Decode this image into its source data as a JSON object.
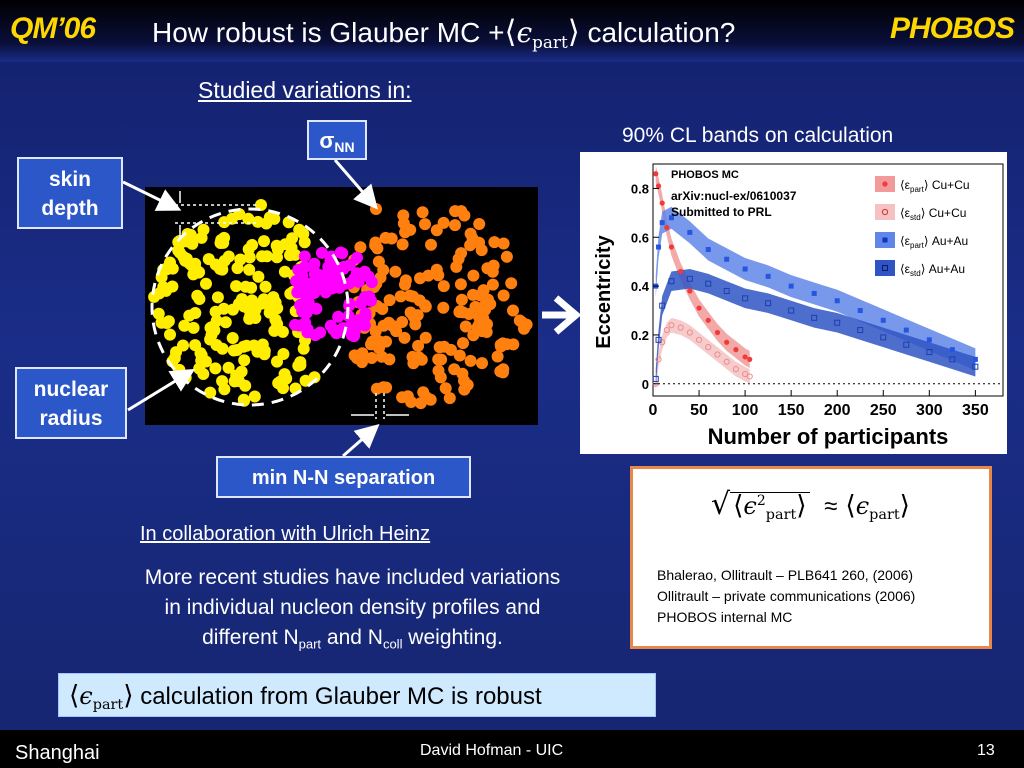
{
  "header": {
    "left_logo": "QM’06",
    "right_logo": "PHOBOS",
    "title_prefix": "How robust is Glauber MC +",
    "title_symbol": "ϵ",
    "title_subscript": "part",
    "title_suffix": "calculation?"
  },
  "studied_heading": "Studied variations in:",
  "labels": {
    "skin_line1": "skin",
    "skin_line2": "depth",
    "nuclear_line1": "nuclear",
    "nuclear_line2": "radius",
    "sigma_symbol": "σ",
    "sigma_subscript": "NN",
    "min_separation": "min N-N separation"
  },
  "cl_caption": "90% CL bands on calculation",
  "plot": {
    "header_text": "PHOBOS MC",
    "arxiv": "arXiv:nucl-ex/0610037",
    "submitted": "Submitted to PRL",
    "ylabel": "Eccentricity",
    "xlabel": "Number of participants",
    "legend": [
      {
        "label_sub": "part",
        "system": "Cu+Cu",
        "color": "#ef3b3b"
      },
      {
        "label_sub": "std",
        "system": "Cu+Cu",
        "color": "#f08a8a"
      },
      {
        "label_sub": "part",
        "system": "Au+Au",
        "color": "#2855e0"
      },
      {
        "label_sub": "std",
        "system": "Au+Au",
        "color": "#1c3fb0"
      }
    ],
    "legend_symbol": "ε"
  },
  "chart_data": {
    "type": "scatter",
    "xticks": [
      "0",
      "50",
      "100",
      "150",
      "200",
      "250",
      "300",
      "350"
    ],
    "yticks": [
      "0",
      "0.2",
      "0.4",
      "0.6",
      "0.8"
    ],
    "xlim": [
      0,
      380
    ],
    "ylim": [
      -0.05,
      0.9
    ],
    "series": [
      {
        "name": "ε_part Cu+Cu",
        "x": [
          3,
          6,
          10,
          15,
          20,
          30,
          40,
          50,
          60,
          70,
          80,
          90,
          100,
          105
        ],
        "y": [
          0.86,
          0.81,
          0.74,
          0.64,
          0.56,
          0.46,
          0.38,
          0.31,
          0.26,
          0.21,
          0.17,
          0.14,
          0.11,
          0.1
        ]
      },
      {
        "name": "ε_std Cu+Cu",
        "x": [
          3,
          6,
          10,
          15,
          20,
          30,
          40,
          50,
          60,
          70,
          80,
          90,
          100,
          105
        ],
        "y": [
          0.0,
          0.1,
          0.17,
          0.22,
          0.24,
          0.23,
          0.21,
          0.18,
          0.15,
          0.12,
          0.09,
          0.06,
          0.04,
          0.03
        ]
      },
      {
        "name": "ε_part Au+Au",
        "x": [
          3,
          6,
          10,
          20,
          40,
          60,
          80,
          100,
          125,
          150,
          175,
          200,
          225,
          250,
          275,
          300,
          325,
          350
        ],
        "y": [
          0.4,
          0.56,
          0.66,
          0.68,
          0.62,
          0.55,
          0.51,
          0.47,
          0.44,
          0.4,
          0.37,
          0.34,
          0.3,
          0.26,
          0.22,
          0.18,
          0.14,
          0.1
        ]
      },
      {
        "name": "ε_std Au+Au",
        "x": [
          3,
          6,
          10,
          20,
          40,
          60,
          80,
          100,
          125,
          150,
          175,
          200,
          225,
          250,
          275,
          300,
          325,
          350
        ],
        "y": [
          0.02,
          0.18,
          0.32,
          0.42,
          0.43,
          0.41,
          0.38,
          0.35,
          0.33,
          0.3,
          0.27,
          0.25,
          0.22,
          0.19,
          0.16,
          0.13,
          0.1,
          0.07
        ]
      }
    ]
  },
  "collab_text": "In collaboration with Ulrich Heinz",
  "more": {
    "line1": "More recent studies have included variations",
    "line2": "in individual nucleon density profiles and",
    "line3a": "different N",
    "line3_sub1": "part",
    "line3b": " and N",
    "line3_sub2": "coll",
    "line3c": " weighting."
  },
  "refbox": {
    "formula_eps": "ϵ",
    "formula_sup": "2",
    "formula_sub": "part",
    "formula_approx": "≈",
    "ref1": "Bhalerao, Ollitrault – PLB641 260, (2006)",
    "ref2": "Ollitrault – private communications (2006)",
    "ref3": "PHOBOS internal MC"
  },
  "result": {
    "symbol": "ϵ",
    "subscript": "part",
    "text": "calculation from Glauber MC is robust"
  },
  "footer": {
    "location": "Shanghai",
    "author": "David Hofman - UIC",
    "page": "13"
  }
}
